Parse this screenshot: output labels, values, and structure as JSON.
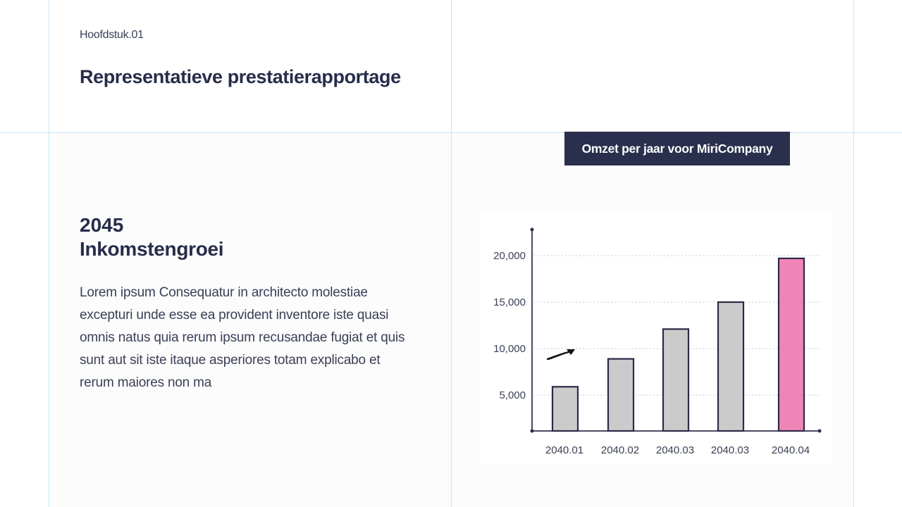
{
  "header": {
    "chapter": "Hoofdstuk.01",
    "title": "Representatieve prestatierapportage"
  },
  "section": {
    "year": "2045",
    "title": "Inkomstengroei",
    "body": "Lorem ipsum Consequatur in architecto molestiae excepturi unde esse ea provident inventore iste quasi omnis natus quia rerum ipsum recusandae fugiat et quis sunt aut sit iste itaque asperiores totam explicabo et rerum maiores non ma"
  },
  "chart_badge": {
    "label": "Omzet per jaar voor MiriCompany"
  },
  "colors": {
    "navy": "#2a2f4d",
    "bar_default": "#cbcbcb",
    "bar_highlight": "#ef85b7",
    "bar_stroke": "#2d2b47",
    "guide": "#c6e6f7",
    "text": "#272d4a"
  },
  "icons": {
    "trend_arrow": "arrow-up-right-icon"
  },
  "chart_data": {
    "type": "bar",
    "title": "Omzet per jaar voor MiriCompany",
    "xlabel": "",
    "ylabel": "",
    "categories": [
      "2040.01",
      "2040.02",
      "2040.03",
      "2040.03",
      "2040.04"
    ],
    "values": [
      5900,
      8900,
      12100,
      15000,
      19700
    ],
    "highlight_index": 4,
    "yticks": [
      5000,
      10000,
      15000,
      20000
    ],
    "ytick_labels": [
      "5,000",
      "10,000",
      "15,000",
      "20,000"
    ],
    "ylim": [
      1150,
      22800
    ],
    "grid": "horizontal-dotted",
    "legend": "none",
    "annotations": [
      "upward trend arrow near 10,000 gridline"
    ]
  }
}
